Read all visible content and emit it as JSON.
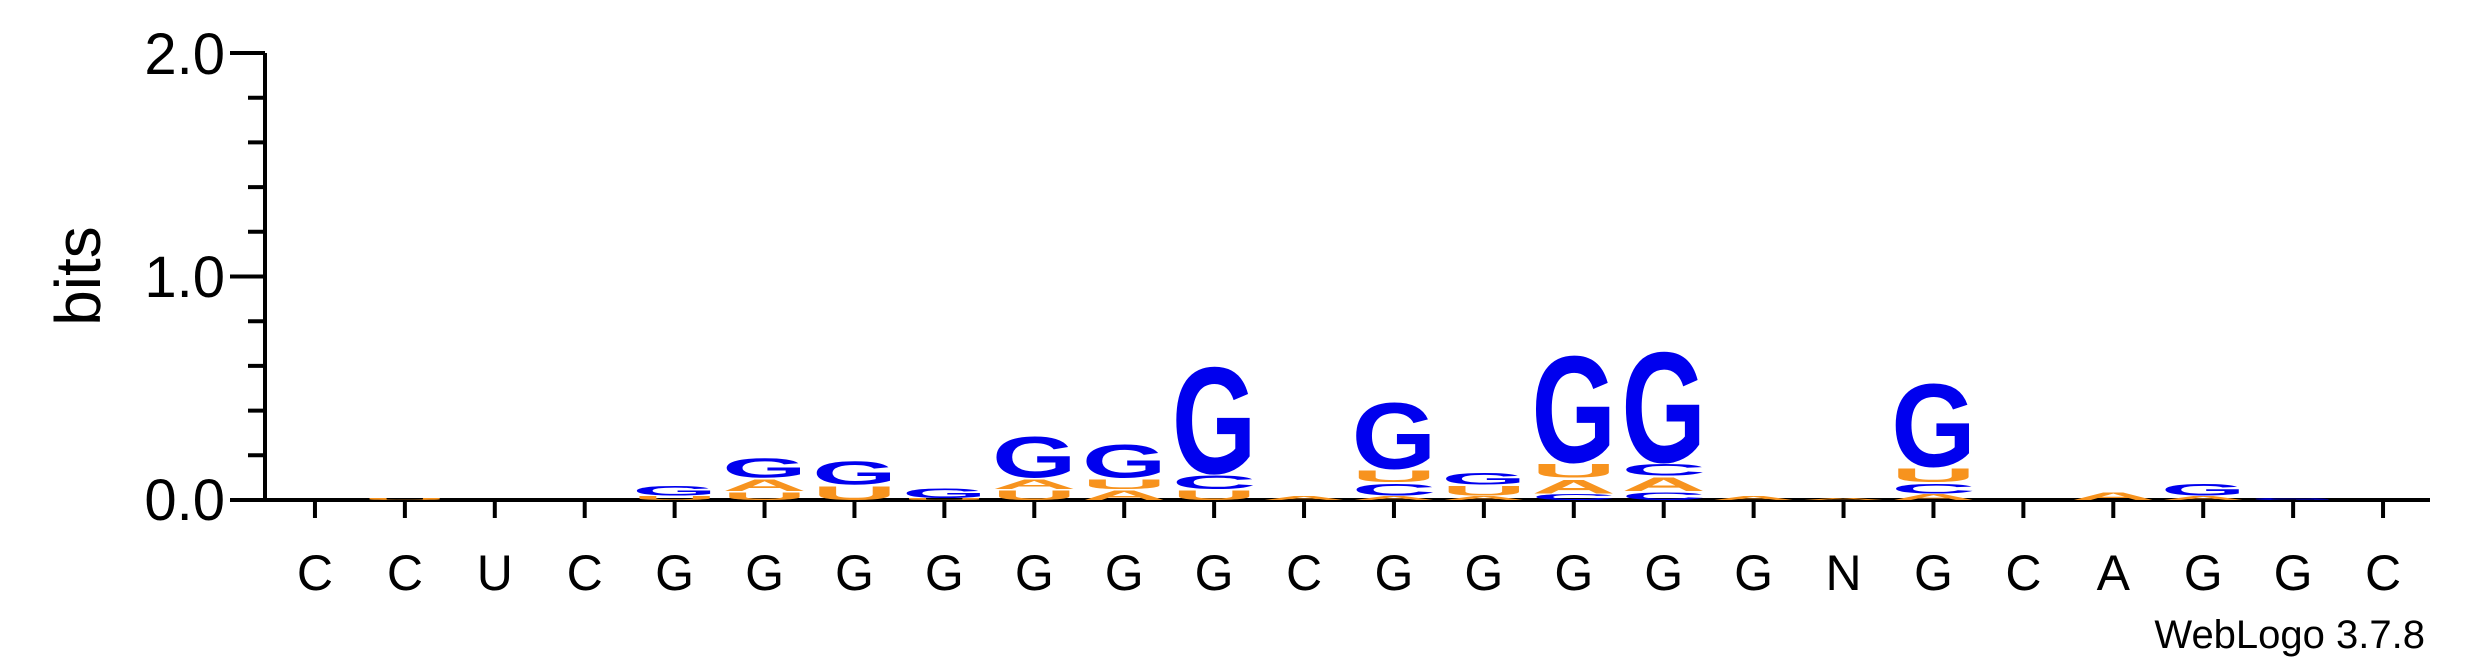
{
  "chart_data": {
    "type": "sequence-logo",
    "ylabel": "bits",
    "ylim": [
      0,
      2.0
    ],
    "yticks": [
      "0.0",
      "1.0",
      "2.0"
    ],
    "credit": "WebLogo 3.7.8",
    "colors": {
      "G": "#0000ee",
      "C": "#0000ee",
      "U": "#f7931e",
      "A": "#f7931e",
      "N": "#808080"
    },
    "positions": [
      {
        "label": "C",
        "stack": []
      },
      {
        "label": "C",
        "stack": [
          {
            "letter": "U",
            "bits": 0.01
          }
        ]
      },
      {
        "label": "U",
        "stack": []
      },
      {
        "label": "C",
        "stack": []
      },
      {
        "label": "G",
        "stack": [
          {
            "letter": "U",
            "bits": 0.02
          },
          {
            "letter": "G",
            "bits": 0.05
          }
        ]
      },
      {
        "label": "G",
        "stack": [
          {
            "letter": "U",
            "bits": 0.04
          },
          {
            "letter": "A",
            "bits": 0.06
          },
          {
            "letter": "G",
            "bits": 0.1
          }
        ]
      },
      {
        "label": "G",
        "stack": [
          {
            "letter": "U",
            "bits": 0.07
          },
          {
            "letter": "G",
            "bits": 0.12
          }
        ]
      },
      {
        "label": "G",
        "stack": [
          {
            "letter": "U",
            "bits": 0.01
          },
          {
            "letter": "G",
            "bits": 0.05
          }
        ]
      },
      {
        "label": "G",
        "stack": [
          {
            "letter": "U",
            "bits": 0.05
          },
          {
            "letter": "A",
            "bits": 0.05
          },
          {
            "letter": "G",
            "bits": 0.21
          }
        ]
      },
      {
        "label": "G",
        "stack": [
          {
            "letter": "A",
            "bits": 0.05
          },
          {
            "letter": "U",
            "bits": 0.05
          },
          {
            "letter": "G",
            "bits": 0.17
          }
        ]
      },
      {
        "label": "G",
        "stack": [
          {
            "letter": "U",
            "bits": 0.05
          },
          {
            "letter": "C",
            "bits": 0.07
          },
          {
            "letter": "G",
            "bits": 0.55
          }
        ]
      },
      {
        "label": "C",
        "stack": [
          {
            "letter": "A",
            "bits": 0.02
          }
        ]
      },
      {
        "label": "G",
        "stack": [
          {
            "letter": "A",
            "bits": 0.02
          },
          {
            "letter": "C",
            "bits": 0.06
          },
          {
            "letter": "U",
            "bits": 0.06
          },
          {
            "letter": "G",
            "bits": 0.34
          }
        ]
      },
      {
        "label": "G",
        "stack": [
          {
            "letter": "A",
            "bits": 0.02
          },
          {
            "letter": "U",
            "bits": 0.05
          },
          {
            "letter": "G",
            "bits": 0.06
          }
        ]
      },
      {
        "label": "G",
        "stack": [
          {
            "letter": "C",
            "bits": 0.03
          },
          {
            "letter": "A",
            "bits": 0.07
          },
          {
            "letter": "U",
            "bits": 0.07
          },
          {
            "letter": "G",
            "bits": 0.55
          }
        ]
      },
      {
        "label": "G",
        "stack": [
          {
            "letter": "C",
            "bits": 0.04
          },
          {
            "letter": "A",
            "bits": 0.07
          },
          {
            "letter": "C",
            "bits": 0.06
          },
          {
            "letter": "G",
            "bits": 0.57
          }
        ]
      },
      {
        "label": "G",
        "stack": [
          {
            "letter": "A",
            "bits": 0.02
          }
        ]
      },
      {
        "label": "N",
        "stack": [
          {
            "letter": "A",
            "bits": 0.01
          }
        ]
      },
      {
        "label": "G",
        "stack": [
          {
            "letter": "A",
            "bits": 0.03
          },
          {
            "letter": "C",
            "bits": 0.05
          },
          {
            "letter": "U",
            "bits": 0.07
          },
          {
            "letter": "G",
            "bits": 0.43
          }
        ]
      },
      {
        "label": "C",
        "stack": []
      },
      {
        "label": "A",
        "stack": [
          {
            "letter": "A",
            "bits": 0.04
          }
        ]
      },
      {
        "label": "G",
        "stack": [
          {
            "letter": "A",
            "bits": 0.02
          },
          {
            "letter": "G",
            "bits": 0.06
          }
        ]
      },
      {
        "label": "G",
        "stack": [
          {
            "letter": "G",
            "bits": 0.01
          }
        ]
      },
      {
        "label": "C",
        "stack": []
      }
    ]
  }
}
